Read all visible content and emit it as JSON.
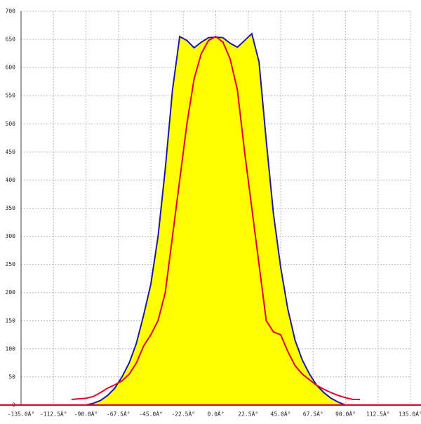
{
  "chart_data": {
    "type": "area-line",
    "x": [
      -100,
      -95,
      -90,
      -85,
      -80,
      -75,
      -70,
      -65,
      -60,
      -55,
      -50,
      -45,
      -40,
      -35,
      -30,
      -25,
      -20,
      -15,
      -10,
      -5,
      0,
      5,
      10,
      15,
      20,
      25,
      30,
      35,
      40,
      45,
      50,
      55,
      60,
      65,
      70,
      75,
      80,
      85,
      90,
      95,
      100
    ],
    "series": [
      {
        "color": "#1a1aa0",
        "fill": "#ffff00",
        "values": [
          null,
          null,
          0,
          3,
          8,
          17,
          30,
          50,
          75,
          110,
          160,
          215,
          300,
          420,
          560,
          655,
          648,
          635,
          645,
          653,
          654,
          653,
          643,
          636,
          648,
          660,
          610,
          470,
          340,
          245,
          170,
          115,
          80,
          55,
          35,
          22,
          12,
          5,
          0,
          0,
          0
        ]
      },
      {
        "color": "#e0002a",
        "values": [
          10,
          11,
          12,
          15,
          22,
          30,
          36,
          43,
          55,
          75,
          105,
          125,
          150,
          200,
          300,
          400,
          500,
          580,
          625,
          648,
          655,
          645,
          615,
          560,
          450,
          350,
          250,
          150,
          130,
          125,
          95,
          70,
          55,
          45,
          35,
          28,
          22,
          17,
          13,
          10,
          10
        ]
      }
    ],
    "xlim": [
      -135,
      135
    ],
    "xticks": [
      {
        "value": -135,
        "label": "-135.0Â°"
      },
      {
        "value": -112.5,
        "label": "-112.5Â°"
      },
      {
        "value": -90,
        "label": "-90.0Â°"
      },
      {
        "value": -67.5,
        "label": "-67.5Â°"
      },
      {
        "value": -45,
        "label": "-45.0Â°"
      },
      {
        "value": -22.5,
        "label": "-22.5Â°"
      },
      {
        "value": 0,
        "label": "0.0Â°"
      },
      {
        "value": 22.5,
        "label": "22.5Â°"
      },
      {
        "value": 45,
        "label": "45.0Â°"
      },
      {
        "value": 67.5,
        "label": "67.5Â°"
      },
      {
        "value": 90,
        "label": "90.0Â°"
      },
      {
        "value": 112.5,
        "label": "112.5Â°"
      },
      {
        "value": 135,
        "label": "135.0Â°"
      }
    ],
    "ylim": [
      0,
      700
    ],
    "yticks": [
      0,
      50,
      100,
      150,
      200,
      250,
      300,
      350,
      400,
      450,
      500,
      550,
      600,
      650,
      700
    ],
    "grid": true
  }
}
